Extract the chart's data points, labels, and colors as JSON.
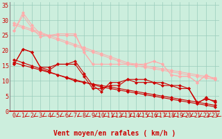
{
  "bg_color": "#cceedd",
  "grid_color": "#99ccbb",
  "line_color_dark": "#cc0000",
  "line_color_light": "#ffaaaa",
  "xlabel": "Vent moyen/en rafales ( km/h )",
  "xlim": [
    0,
    23
  ],
  "ylim": [
    0,
    36
  ],
  "xticks": [
    0,
    1,
    2,
    3,
    4,
    5,
    6,
    7,
    8,
    9,
    10,
    11,
    12,
    13,
    14,
    15,
    16,
    17,
    18,
    19,
    20,
    21,
    22,
    23
  ],
  "yticks": [
    0,
    5,
    10,
    15,
    20,
    25,
    30,
    35
  ],
  "lines_dark_data": [
    [
      15.5,
      20.5,
      19.5,
      14.5,
      14.5,
      15.5,
      15.5,
      16.5,
      12.5,
      8.5,
      6.5,
      9.5,
      9.5,
      10.5,
      10.5,
      10.5,
      9.5,
      9.5,
      8.5,
      8.5,
      7.5,
      3.0,
      4.0,
      3.5
    ],
    [
      15.5,
      20.5,
      19.5,
      14.5,
      13.5,
      15.5,
      15.5,
      15.5,
      11.5,
      7.5,
      7.5,
      8.5,
      8.5,
      10.5,
      9.5,
      9.5,
      9.5,
      8.5,
      8.5,
      7.5,
      7.5,
      2.5,
      4.5,
      3.0
    ]
  ],
  "lines_dark_trend": [
    [
      17.0,
      16.0,
      15.0,
      14.0,
      13.0,
      12.0,
      11.0,
      10.0,
      9.5,
      9.0,
      8.5,
      8.0,
      7.5,
      7.0,
      6.5,
      6.0,
      5.5,
      5.0,
      4.5,
      4.0,
      3.5,
      3.0,
      2.5,
      2.0
    ],
    [
      16.0,
      15.2,
      14.4,
      13.6,
      12.8,
      12.0,
      11.2,
      10.4,
      9.6,
      8.8,
      8.0,
      7.5,
      7.0,
      6.5,
      6.0,
      5.5,
      5.0,
      4.5,
      4.0,
      3.5,
      3.0,
      2.5,
      2.0,
      1.5
    ]
  ],
  "lines_light_data": [
    [
      26.5,
      31.5,
      27.5,
      24.5,
      25.0,
      25.0,
      25.0,
      25.0,
      19.5,
      15.5,
      15.5,
      15.5,
      15.5,
      15.5,
      15.5,
      15.5,
      16.5,
      15.5,
      12.0,
      11.5,
      11.5,
      9.5,
      12.0,
      10.5
    ],
    [
      26.5,
      32.5,
      28.5,
      25.5,
      25.0,
      25.5,
      25.5,
      25.5,
      19.5,
      15.5,
      15.5,
      15.5,
      15.5,
      15.5,
      15.5,
      15.5,
      16.5,
      15.5,
      12.0,
      11.5,
      11.5,
      9.5,
      12.0,
      10.5
    ]
  ],
  "lines_light_trend": [
    [
      28.5,
      27.5,
      26.5,
      25.5,
      24.5,
      23.5,
      22.5,
      21.5,
      20.5,
      19.5,
      18.5,
      17.5,
      16.5,
      15.5,
      15.0,
      14.5,
      14.0,
      13.5,
      13.0,
      12.5,
      12.0,
      11.5,
      11.0,
      10.5
    ],
    [
      29.0,
      28.0,
      27.0,
      26.0,
      25.0,
      24.0,
      23.0,
      22.0,
      21.0,
      20.0,
      19.0,
      18.0,
      17.0,
      16.0,
      15.5,
      15.0,
      14.5,
      14.0,
      13.5,
      13.0,
      12.5,
      12.0,
      11.5,
      11.0
    ]
  ],
  "tick_font_size": 6,
  "xlabel_font_size": 7,
  "marker_size": 2.5
}
